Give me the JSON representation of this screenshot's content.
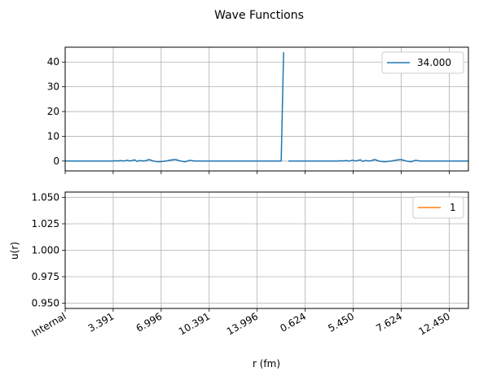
{
  "figure": {
    "title": "Wave Functions"
  },
  "colors": {
    "series1": "#1f77b4",
    "series2": "#ff7f0e",
    "grid": "#b0b0b0",
    "axis": "#000000"
  },
  "chart_data": [
    {
      "type": "line",
      "title": "",
      "xlabel": "",
      "ylabel": "",
      "grid": true,
      "legend_position": "top-right",
      "ylim": [
        -4,
        46
      ],
      "yticks": [
        0,
        10,
        20,
        30,
        40
      ],
      "xlim": [
        0,
        8.4
      ],
      "xtick_positions": [
        0,
        1,
        2,
        3,
        4,
        5,
        6,
        7,
        8
      ],
      "series": [
        {
          "name": "34.000",
          "segments": [
            [
              [
                0.0,
                0
              ],
              [
                1.0,
                0
              ],
              [
                1.05,
                0.15
              ],
              [
                1.1,
                0
              ],
              [
                1.15,
                0.2
              ],
              [
                1.2,
                0
              ],
              [
                1.3,
                0.3
              ],
              [
                1.35,
                0
              ],
              [
                1.45,
                0.5
              ],
              [
                1.5,
                -0.2
              ],
              [
                1.55,
                0.2
              ],
              [
                1.65,
                0
              ],
              [
                1.75,
                0.6
              ],
              [
                1.85,
                -0.1
              ],
              [
                1.95,
                -0.3
              ],
              [
                2.1,
                0
              ],
              [
                2.2,
                0.4
              ],
              [
                2.3,
                0.6
              ],
              [
                2.4,
                0
              ],
              [
                2.5,
                -0.3
              ],
              [
                2.6,
                0.3
              ],
              [
                2.7,
                0
              ],
              [
                4.5,
                0
              ],
              [
                4.55,
                44
              ]
            ],
            [
              [
                4.65,
                0
              ],
              [
                5.7,
                0
              ],
              [
                5.75,
                0.15
              ],
              [
                5.8,
                0
              ],
              [
                5.85,
                0.2
              ],
              [
                5.9,
                0
              ],
              [
                6.0,
                0.3
              ],
              [
                6.05,
                0
              ],
              [
                6.15,
                0.5
              ],
              [
                6.2,
                -0.2
              ],
              [
                6.25,
                0.2
              ],
              [
                6.35,
                0
              ],
              [
                6.45,
                0.6
              ],
              [
                6.55,
                -0.1
              ],
              [
                6.65,
                -0.3
              ],
              [
                6.8,
                0
              ],
              [
                6.9,
                0.4
              ],
              [
                7.0,
                0.6
              ],
              [
                7.1,
                0
              ],
              [
                7.2,
                -0.3
              ],
              [
                7.3,
                0.3
              ],
              [
                7.4,
                0
              ],
              [
                8.4,
                0
              ]
            ]
          ]
        }
      ]
    },
    {
      "type": "line",
      "title": "",
      "xlabel": "r (fm)",
      "ylabel": "u(r)",
      "grid": true,
      "legend_position": "top-right",
      "ylim": [
        0.945,
        1.055
      ],
      "yticks": [
        0.95,
        0.975,
        1.0,
        1.025,
        1.05
      ],
      "ytick_labels": [
        "0.950",
        "0.975",
        "1.000",
        "1.025",
        "1.050"
      ],
      "xlim": [
        0,
        8.4
      ],
      "xtick_positions": [
        0,
        1,
        2,
        3,
        4,
        5,
        6,
        7,
        8
      ],
      "xtick_labels": [
        "Internal",
        "3.391",
        "6.996",
        "10.391",
        "13.996",
        "0.624",
        "5.450",
        "7.624",
        "12.450"
      ],
      "series": [
        {
          "name": "1",
          "segments": []
        }
      ]
    }
  ]
}
